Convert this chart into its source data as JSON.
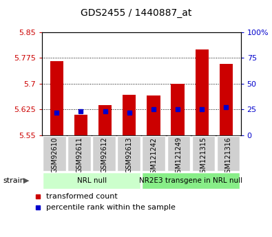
{
  "title": "GDS2455 / 1440887_at",
  "samples": [
    "GSM92610",
    "GSM92611",
    "GSM92612",
    "GSM92613",
    "GSM121242",
    "GSM121249",
    "GSM121315",
    "GSM121316"
  ],
  "transformed_counts": [
    5.765,
    5.61,
    5.638,
    5.668,
    5.666,
    5.7,
    5.8,
    5.758
  ],
  "percentile_ranks": [
    22,
    23,
    23,
    22,
    25,
    25,
    25,
    27
  ],
  "y_min": 5.55,
  "y_max": 5.85,
  "y_ticks": [
    5.55,
    5.625,
    5.7,
    5.775,
    5.85
  ],
  "right_y_ticks": [
    0,
    25,
    50,
    75,
    100
  ],
  "right_y_labels": [
    "0",
    "25",
    "50",
    "75",
    "100%"
  ],
  "bar_color": "#cc0000",
  "dot_color": "#0000cc",
  "bar_bottom": 5.55,
  "groups": [
    {
      "label": "NRL null",
      "start": 0,
      "end": 4,
      "color": "#ccffcc"
    },
    {
      "label": "NR2E3 transgene in NRL null",
      "start": 4,
      "end": 8,
      "color": "#88ee88"
    }
  ],
  "tick_label_color_left": "#cc0000",
  "tick_label_color_right": "#0000cc",
  "sample_box_color": "#d0d0d0",
  "legend_items": [
    {
      "color": "#cc0000",
      "label": "transformed count"
    },
    {
      "color": "#0000cc",
      "label": "percentile rank within the sample"
    }
  ]
}
